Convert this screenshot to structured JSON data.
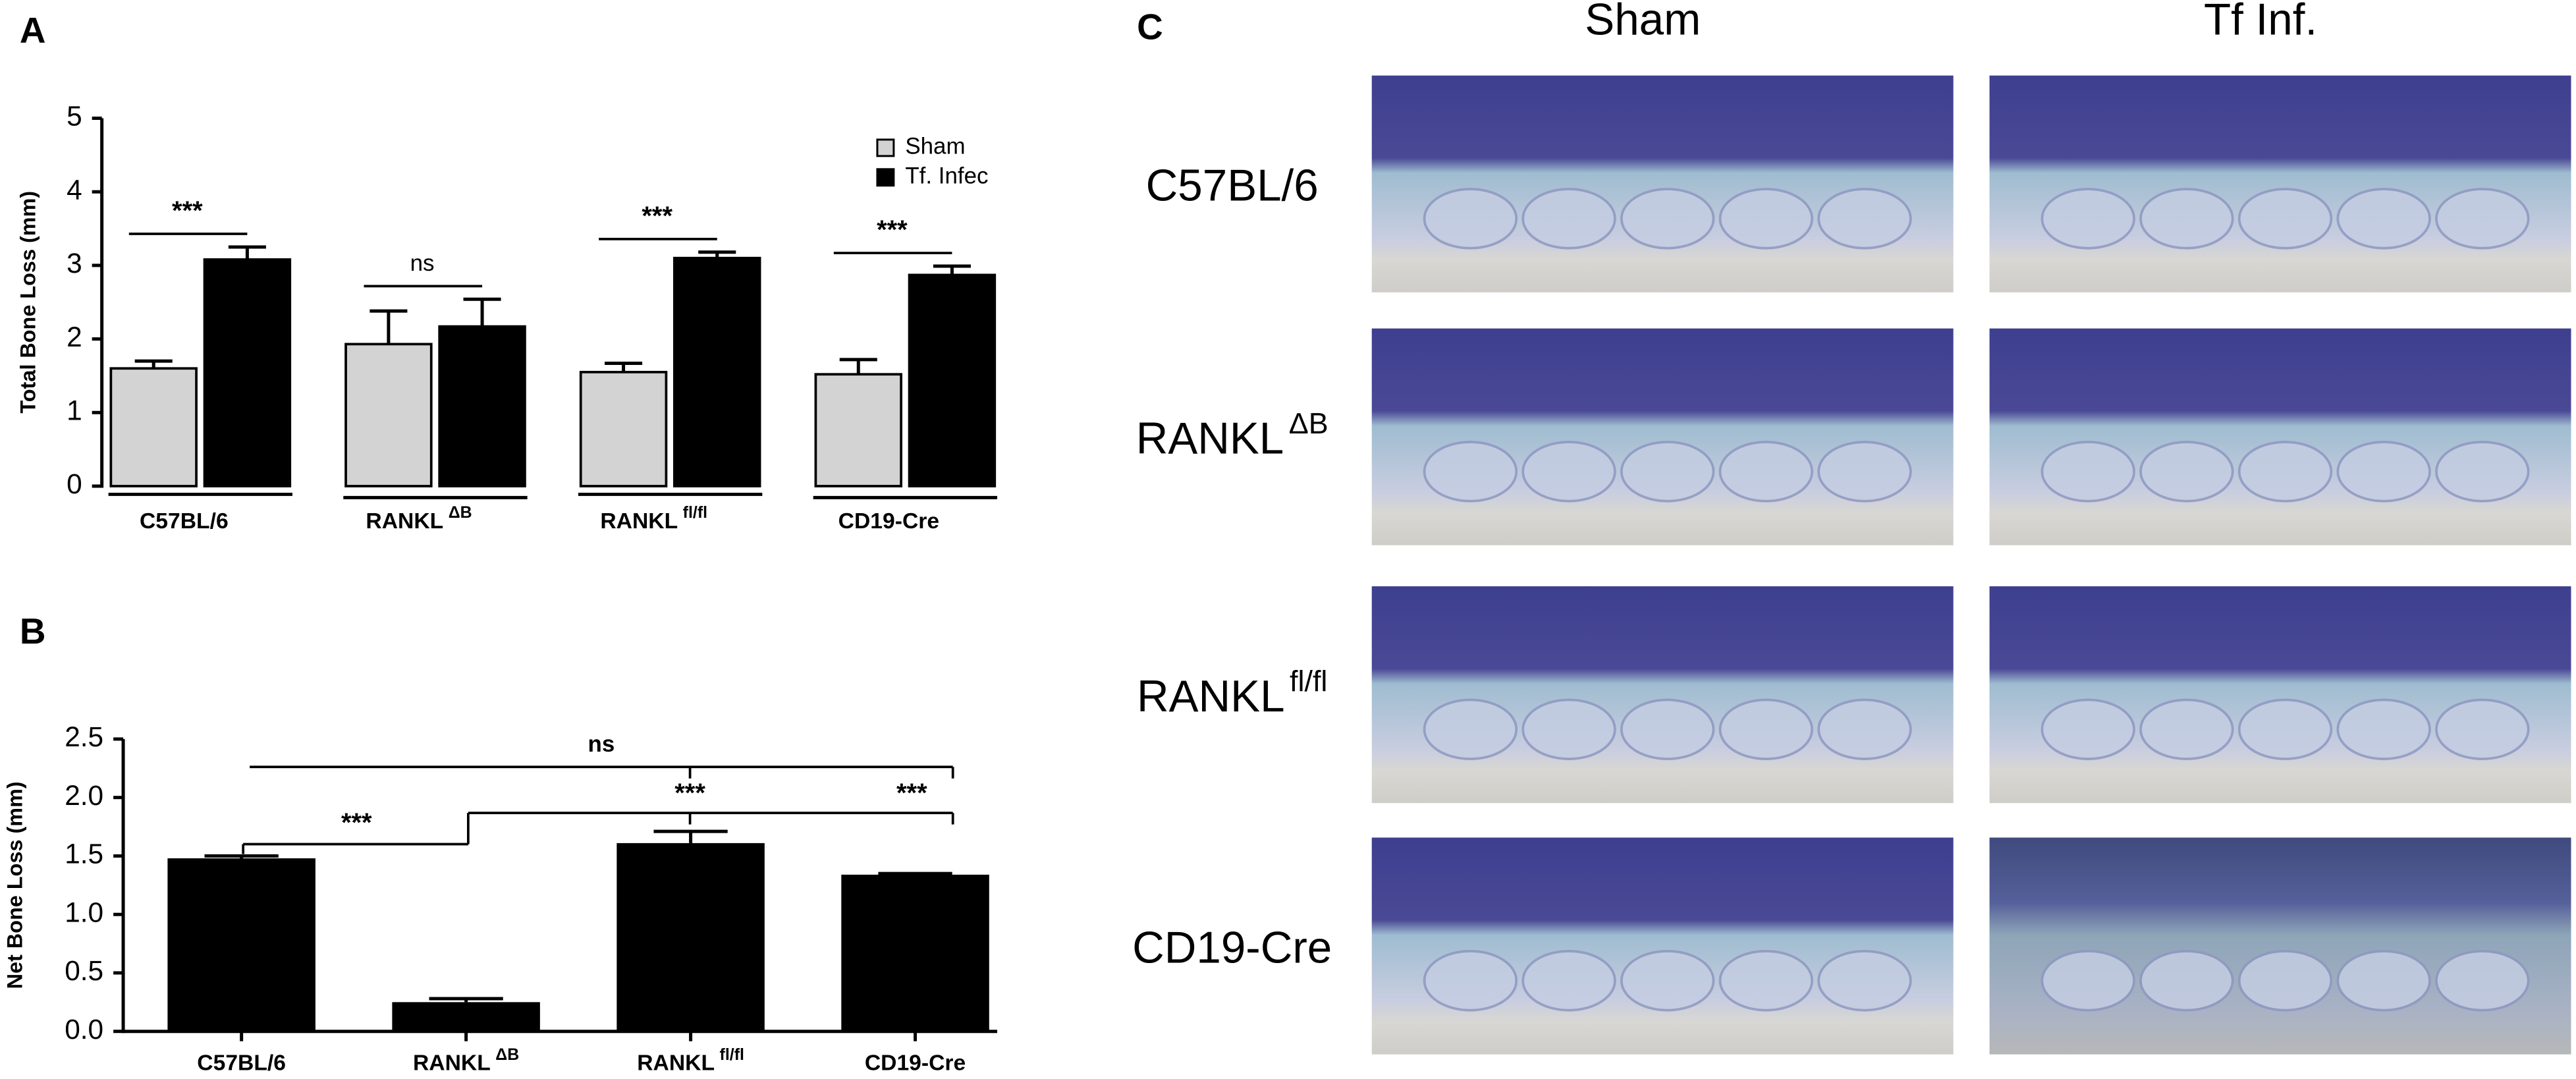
{
  "chart_data": [
    {
      "type": "bar",
      "panel": "A",
      "y_label": "Total Bone Loss (mm)",
      "categories": [
        "C57BL/6",
        "RANKL",
        "RANKL",
        "CD19-Cre"
      ],
      "category_superscripts": [
        null,
        "ΔB",
        "fl/fl",
        null
      ],
      "series": [
        {
          "name": "Sham",
          "color": "#d3d3d3",
          "values": [
            1.6,
            1.93,
            1.55,
            1.52
          ],
          "errors": [
            0.1,
            0.45,
            0.12,
            0.2
          ]
        },
        {
          "name": "Tf. Infec",
          "color": "#000000",
          "values": [
            3.08,
            2.17,
            3.1,
            2.87
          ],
          "errors": [
            0.17,
            0.37,
            0.08,
            0.12
          ]
        }
      ],
      "annotations": [
        "***",
        "ns",
        "***",
        "***"
      ],
      "ylim": [
        0,
        5
      ],
      "yticks": [
        0,
        1,
        2,
        3,
        4,
        5
      ],
      "legend": "upper right"
    },
    {
      "type": "bar",
      "panel": "B",
      "y_label": "Net Bone Loss (mm)",
      "categories": [
        "C57BL/6",
        "RANKL",
        "RANKL",
        "CD19-Cre"
      ],
      "category_superscripts": [
        null,
        "ΔB",
        "fl/fl",
        null
      ],
      "color": "#000000",
      "values": [
        1.48,
        0.25,
        1.61,
        1.34
      ],
      "errors": [
        0.02,
        0.03,
        0.1,
        0.01
      ],
      "annotations": [
        "ns",
        "***",
        "***",
        "***"
      ],
      "ylim": [
        0,
        2.5
      ],
      "yticks": [
        {
          "value": 0,
          "label": "0.0"
        },
        0.5,
        {
          "value": 1,
          "label": "1.0"
        },
        1.5,
        {
          "value": 2,
          "label": "2.0"
        },
        2.5
      ]
    }
  ],
  "panel_c": {
    "label": "C",
    "columns": [
      "Sham",
      "Tf Inf."
    ],
    "rows": [
      "C57BL/6",
      "RANKL",
      "RANKL",
      "CD19-Cre"
    ],
    "row_superscripts": [
      null,
      "ΔB",
      "fl/fl",
      null
    ]
  }
}
